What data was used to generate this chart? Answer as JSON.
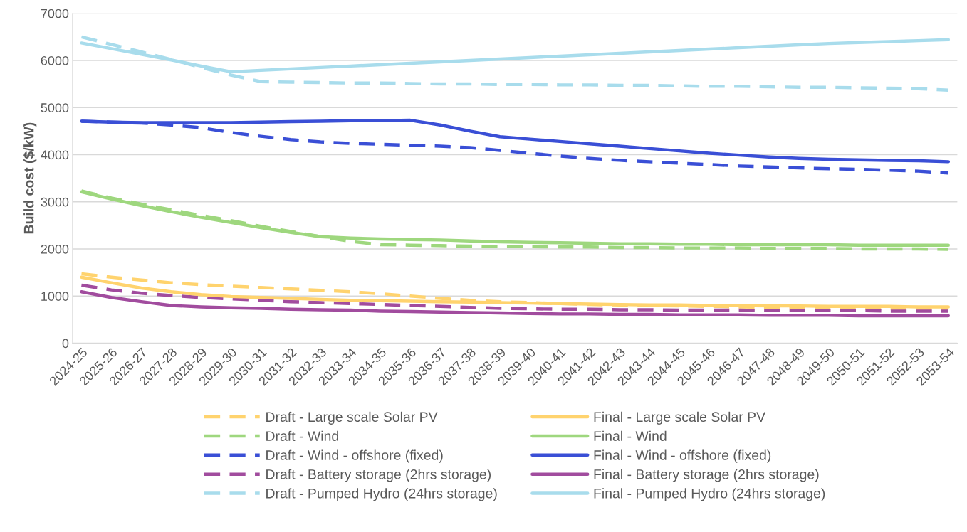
{
  "chart_data": {
    "type": "line",
    "ylabel": "Build cost ($/kW)",
    "categories": [
      "2024-25",
      "2025-26",
      "2026-27",
      "2027-28",
      "2028-29",
      "2029-30",
      "2030-31",
      "2031-32",
      "2032-33",
      "2033-34",
      "2034-35",
      "2035-36",
      "2036-37",
      "2037-38",
      "2038-39",
      "2039-40",
      "2040-41",
      "2041-42",
      "2042-43",
      "2043-44",
      "2044-45",
      "2045-46",
      "2046-47",
      "2047-48",
      "2048-49",
      "2049-50",
      "2050-51",
      "2051-52",
      "2052-53",
      "2053-54"
    ],
    "ylim": [
      0,
      7000
    ],
    "yticks": [
      0,
      1000,
      2000,
      3000,
      4000,
      5000,
      6000,
      7000
    ],
    "grid": "y",
    "legend": "bottom",
    "marker": "none",
    "series": [
      {
        "name": "Draft - Large scale Solar PV",
        "color": "#ffd36e",
        "line_style": "dashed",
        "values": [
          1470,
          1400,
          1340,
          1280,
          1240,
          1210,
          1180,
          1150,
          1120,
          1090,
          1050,
          1000,
          950,
          910,
          880,
          860,
          840,
          820,
          810,
          800,
          790,
          780,
          770,
          760,
          750,
          750,
          740,
          740,
          730,
          730
        ]
      },
      {
        "name": "Draft - Wind",
        "color": "#9ed77e",
        "line_style": "dashed",
        "values": [
          3230,
          3080,
          2950,
          2830,
          2710,
          2600,
          2480,
          2370,
          2260,
          2160,
          2090,
          2080,
          2070,
          2060,
          2050,
          2050,
          2040,
          2040,
          2030,
          2030,
          2020,
          2020,
          2020,
          2010,
          2010,
          2010,
          2000,
          2000,
          2000,
          1990
        ]
      },
      {
        "name": "Draft - Wind - offshore (fixed)",
        "color": "#3a4fd6",
        "line_style": "dashed",
        "values": [
          4710,
          4690,
          4670,
          4630,
          4570,
          4470,
          4390,
          4320,
          4270,
          4240,
          4220,
          4200,
          4180,
          4150,
          4090,
          4030,
          3970,
          3920,
          3880,
          3850,
          3820,
          3790,
          3760,
          3740,
          3720,
          3700,
          3690,
          3670,
          3650,
          3610
        ]
      },
      {
        "name": "Draft - Battery storage (2hrs storage)",
        "color": "#a14c9e",
        "line_style": "dashed",
        "values": [
          1230,
          1130,
          1060,
          1010,
          970,
          940,
          910,
          880,
          860,
          840,
          820,
          800,
          780,
          760,
          740,
          730,
          720,
          720,
          710,
          710,
          700,
          700,
          700,
          690,
          690,
          690,
          690,
          680,
          680,
          680
        ]
      },
      {
        "name": "Draft - Pumped Hydro (24hrs storage)",
        "color": "#a8dcec",
        "line_style": "dashed",
        "values": [
          6500,
          6340,
          6180,
          6020,
          5850,
          5690,
          5550,
          5540,
          5530,
          5520,
          5520,
          5510,
          5500,
          5500,
          5490,
          5490,
          5480,
          5480,
          5470,
          5470,
          5460,
          5450,
          5450,
          5440,
          5430,
          5430,
          5420,
          5410,
          5400,
          5370
        ]
      },
      {
        "name": "Final - Large scale Solar PV",
        "color": "#ffd36e",
        "line_style": "solid",
        "values": [
          1400,
          1280,
          1170,
          1090,
          1030,
          990,
          970,
          950,
          930,
          910,
          900,
          890,
          880,
          870,
          860,
          850,
          840,
          830,
          820,
          810,
          810,
          800,
          800,
          790,
          790,
          780,
          780,
          780,
          770,
          770
        ]
      },
      {
        "name": "Final - Wind",
        "color": "#9ed77e",
        "line_style": "solid",
        "values": [
          3210,
          3060,
          2920,
          2790,
          2670,
          2560,
          2450,
          2350,
          2260,
          2230,
          2210,
          2200,
          2190,
          2170,
          2150,
          2140,
          2130,
          2120,
          2110,
          2110,
          2100,
          2100,
          2090,
          2090,
          2090,
          2090,
          2080,
          2080,
          2080,
          2080
        ]
      },
      {
        "name": "Final - Wind - offshore (fixed)",
        "color": "#3a4fd6",
        "line_style": "solid",
        "values": [
          4710,
          4690,
          4680,
          4680,
          4680,
          4680,
          4690,
          4700,
          4710,
          4720,
          4720,
          4730,
          4630,
          4500,
          4380,
          4330,
          4280,
          4230,
          4180,
          4130,
          4080,
          4030,
          3990,
          3950,
          3920,
          3900,
          3890,
          3880,
          3870,
          3850
        ]
      },
      {
        "name": "Final - Battery storage (2hrs storage)",
        "color": "#a14c9e",
        "line_style": "solid",
        "values": [
          1090,
          970,
          880,
          800,
          770,
          750,
          740,
          720,
          710,
          700,
          680,
          670,
          660,
          650,
          640,
          630,
          620,
          620,
          610,
          610,
          600,
          600,
          600,
          590,
          590,
          590,
          580,
          580,
          580,
          580
        ]
      },
      {
        "name": "Final - Pumped Hydro (24hrs storage)",
        "color": "#a8dcec",
        "line_style": "solid",
        "values": [
          6370,
          6250,
          6130,
          6010,
          5880,
          5760,
          5790,
          5820,
          5850,
          5880,
          5910,
          5940,
          5970,
          6000,
          6030,
          6060,
          6090,
          6120,
          6150,
          6180,
          6210,
          6240,
          6270,
          6300,
          6330,
          6360,
          6380,
          6400,
          6420,
          6440
        ]
      }
    ]
  }
}
